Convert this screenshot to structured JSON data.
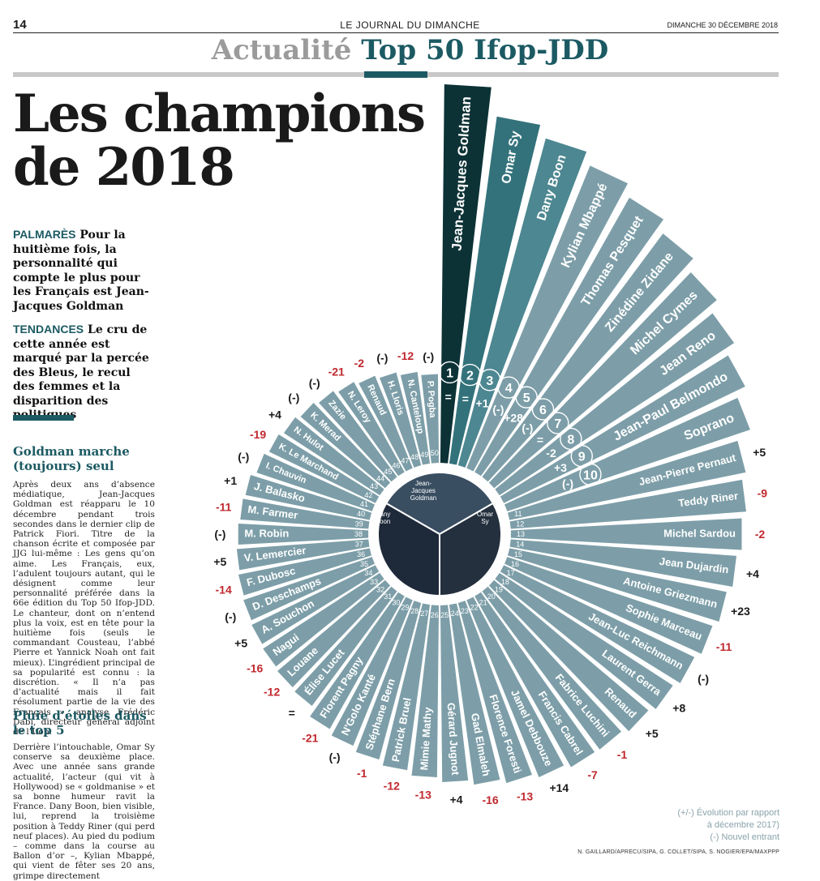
{
  "header": {
    "page_number": "14",
    "journal": "LE JOURNAL DU DIMANCHE",
    "date": "DIMANCHE 30 DÉCEMBRE 2018",
    "section": "Actualité",
    "section_title": "Top 50 Ifop-JDD"
  },
  "headline": {
    "line1": "Les champions",
    "line2": "de 2018"
  },
  "intro": [
    {
      "kicker": "PALMARÈS",
      "text": "Pour la huitième fois, la personnalité qui compte le plus pour les Français est Jean-Jacques Goldman"
    },
    {
      "kicker": "TENDANCES",
      "text": "Le cru de cette année est marqué par la percée des Bleus, le recul des femmes et la disparition des politiques"
    }
  ],
  "article": {
    "subhead1": "Goldman marche (toujours) seul",
    "para1": "Après deux ans d’absence médiatique, Jean-Jacques Goldman est réapparu le 10 décembre pendant trois secondes dans le dernier clip de Patrick Fiori. Titre de la chanson écrite et composée par JJG lui-même : Les gens qu’on aime. Les Français, eux, l’adulent toujours autant, qui le désignent comme leur personnalité préférée dans la 66e édition du Top 50 Ifop-JDD. Le chanteur, dont on n’entend plus la voix, est en tête pour la huitième fois (seuls le commandant Cousteau, l’abbé Pierre et Yannick Noah ont fait mieux). L’ingrédient principal de sa popularité est connu : la discrétion. « Il n’a pas d’actualité mais il fait résolument partie de la vie des Français », analyse Frédéric Dabi, directeur général adjoint de l’Ifop.",
    "subhead2": "Pluie d’étoiles dans le top 5",
    "para2": "Derrière l’intouchable, Omar Sy conserve sa deuxième place. Avec une année sans grande actualité, l’acteur (qui vit à Hollywood) se « goldmanise » et sa bonne humeur ravit la France. Dany Boon, bien visible, lui, reprend la troisième position à Teddy Riner (qui perd neuf places). Au pied du podium – comme dans la course au Ballon d’or –, Kylian Mbappé, qui vient de fêter ses 20 ans, grimpe directement"
  },
  "chart_data": {
    "type": "radial-bar",
    "title": "Top 50 Ifop-JDD",
    "entries": [
      {
        "rank": 1,
        "name": "Jean-Jacques Goldman",
        "change": "="
      },
      {
        "rank": 2,
        "name": "Omar Sy",
        "change": "="
      },
      {
        "rank": 3,
        "name": "Dany Boon",
        "change": "+1"
      },
      {
        "rank": 4,
        "name": "Kylian Mbappé",
        "change": "(-)"
      },
      {
        "rank": 5,
        "name": "Thomas Pesquet",
        "change": "+28"
      },
      {
        "rank": 6,
        "name": "Zinédine Zidane",
        "change": "(-)"
      },
      {
        "rank": 7,
        "name": "Michel Cymes",
        "change": "="
      },
      {
        "rank": 8,
        "name": "Jean Reno",
        "change": "-2"
      },
      {
        "rank": 9,
        "name": "Jean-Paul Belmondo",
        "change": "+3"
      },
      {
        "rank": 10,
        "name": "Soprano",
        "change": "(-)"
      },
      {
        "rank": 11,
        "name": "Jean-Pierre Pernaut",
        "change": "+5"
      },
      {
        "rank": 12,
        "name": "Teddy Riner",
        "change": "-9"
      },
      {
        "rank": 13,
        "name": "Michel Sardou",
        "change": "-2"
      },
      {
        "rank": 14,
        "name": "Jean Dujardin",
        "change": "+4"
      },
      {
        "rank": 15,
        "name": "Antoine Griezmann",
        "change": "+23"
      },
      {
        "rank": 16,
        "name": "Sophie Marceau",
        "change": "-11"
      },
      {
        "rank": 17,
        "name": "Jean-Luc Reichmann",
        "change": "(-)"
      },
      {
        "rank": 18,
        "name": "Laurent Gerra",
        "change": "+8"
      },
      {
        "rank": 19,
        "name": "Renaud",
        "change": "+5"
      },
      {
        "rank": 20,
        "name": "Fabrice Luchini",
        "change": "-1"
      },
      {
        "rank": 21,
        "name": "Francis Cabrel",
        "change": "-7"
      },
      {
        "rank": 22,
        "name": "Jamel Debbouze",
        "change": "+14"
      },
      {
        "rank": 23,
        "name": "Florence Foresti",
        "change": "-13"
      },
      {
        "rank": 24,
        "name": "Gad Elmaleh",
        "change": "-16"
      },
      {
        "rank": 25,
        "name": "Gérard Jugnot",
        "change": "+4"
      },
      {
        "rank": 26,
        "name": "Mimie Mathy",
        "change": "-13"
      },
      {
        "rank": 27,
        "name": "Patrick Bruel",
        "change": "-12"
      },
      {
        "rank": 28,
        "name": "Stéphane Bern",
        "change": "-1"
      },
      {
        "rank": 29,
        "name": "N'Golo Kanté",
        "change": "(-)"
      },
      {
        "rank": 30,
        "name": "Florent Pagny",
        "change": "-21"
      },
      {
        "rank": 31,
        "name": "Élise Lucet",
        "change": "="
      },
      {
        "rank": 32,
        "name": "Louane",
        "change": "-12"
      },
      {
        "rank": 33,
        "name": "Nagui",
        "change": "-16"
      },
      {
        "rank": 34,
        "name": "A. Souchon",
        "change": "+5"
      },
      {
        "rank": 35,
        "name": "D. Deschamps",
        "change": "(-)"
      },
      {
        "rank": 36,
        "name": "F. Dubosc",
        "change": "-14"
      },
      {
        "rank": 37,
        "name": "V. Lemercier",
        "change": "+5"
      },
      {
        "rank": 38,
        "name": "M. Robin",
        "change": "(-)"
      },
      {
        "rank": 39,
        "name": "M. Farmer",
        "change": "-11"
      },
      {
        "rank": 40,
        "name": "J. Balasko",
        "change": "+1"
      },
      {
        "rank": 41,
        "name": "I. Chauvin",
        "change": "(-)"
      },
      {
        "rank": 42,
        "name": "K. Le Marchand",
        "change": "-19"
      },
      {
        "rank": 43,
        "name": "N. Hulot",
        "change": "+4"
      },
      {
        "rank": 44,
        "name": "K. Merad",
        "change": "(-)"
      },
      {
        "rank": 45,
        "name": "Zazie",
        "change": "(-)"
      },
      {
        "rank": 46,
        "name": "N. Leroy",
        "change": "-21"
      },
      {
        "rank": 47,
        "name": "Renaud",
        "change": "-2"
      },
      {
        "rank": 48,
        "name": "H. Lloris",
        "change": "(-)"
      },
      {
        "rank": 49,
        "name": "N. Canteloup",
        "change": "-12"
      },
      {
        "rank": 50,
        "name": "P. Pogba",
        "change": "(-)"
      }
    ],
    "center_photos": [
      "Jean-Jacques Goldman",
      "Dany Boon",
      "Omar Sy"
    ]
  },
  "legend": {
    "line1": "(+/-) Évolution par rapport",
    "line2": "à décembre 2017)",
    "line3": "(-) Nouvel entrant"
  },
  "credit": "N. GAILLARD/APRECU/SIPA, G. COLLET/SIPA, S. NOGIER/EPA/MAXPPP",
  "colors": {
    "teal": "#1c5a63",
    "dark": "#0c3236",
    "bar_light": "#7d9ea8",
    "negative": "#c0282d"
  }
}
